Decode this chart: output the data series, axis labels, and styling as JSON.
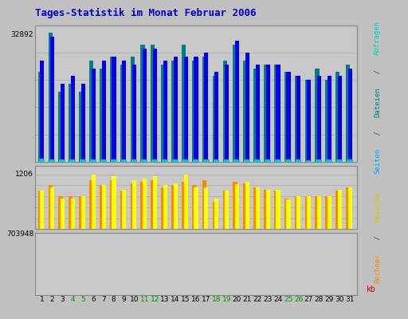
{
  "title": "Tages-Statistik im Monat Februar 2006",
  "days": [
    1,
    2,
    3,
    4,
    5,
    6,
    7,
    8,
    9,
    10,
    11,
    12,
    13,
    14,
    15,
    16,
    17,
    18,
    19,
    20,
    21,
    22,
    23,
    24,
    25,
    26,
    27,
    28,
    29,
    30,
    31
  ],
  "weekend_days": [
    4,
    5,
    11,
    12,
    18,
    19,
    25,
    26
  ],
  "bg_color": "#c0c0c0",
  "plot_bg": "#c8c8c8",
  "title_color": "#0000cc",
  "weekend_color": "#009900",
  "grid_color": "#aaaaaa",
  "teal_bars": [
    23000,
    33000,
    18000,
    20000,
    18000,
    26000,
    24000,
    27000,
    25000,
    27000,
    30000,
    30000,
    25000,
    26000,
    30000,
    26000,
    27000,
    22000,
    26000,
    30000,
    26000,
    24000,
    25000,
    25000,
    23000,
    22000,
    21000,
    24000,
    21000,
    23000,
    25000
  ],
  "blue_bars": [
    26000,
    32000,
    20000,
    22000,
    20000,
    24000,
    26000,
    27000,
    26000,
    25000,
    29000,
    29000,
    26000,
    27000,
    27000,
    27000,
    28000,
    23000,
    25000,
    31000,
    28000,
    25000,
    25000,
    25000,
    23000,
    22000,
    21000,
    22000,
    22000,
    22000,
    24000
  ],
  "cyan_bars": [
    900,
    600,
    600,
    600,
    600,
    700,
    700,
    700,
    600,
    700,
    700,
    700,
    600,
    700,
    600,
    700,
    700,
    600,
    700,
    700,
    600,
    600,
    600,
    600,
    600,
    600,
    500,
    600,
    600,
    600,
    600
  ],
  "orange_bars": [
    1050,
    1100,
    1000,
    1000,
    1000,
    1150,
    1100,
    1150,
    1050,
    1120,
    1130,
    1150,
    1080,
    1100,
    1130,
    1100,
    1150,
    950,
    1050,
    1130,
    1120,
    1080,
    1060,
    1050,
    980,
    1000,
    1000,
    1000,
    1000,
    1050,
    1080
  ],
  "yellow_bars": [
    1050,
    1080,
    980,
    980,
    1000,
    1200,
    1100,
    1180,
    1060,
    1150,
    1160,
    1180,
    1100,
    1120,
    1200,
    1080,
    1080,
    980,
    1050,
    1110,
    1130,
    1080,
    1060,
    1060,
    970,
    1000,
    1000,
    1000,
    1000,
    1060,
    1080
  ],
  "red_bars": [
    600,
    750,
    480,
    470,
    460,
    620,
    640,
    700,
    700,
    650,
    640,
    640,
    660,
    650,
    700,
    700,
    530,
    540,
    610,
    680,
    640,
    560,
    590,
    450,
    540,
    490,
    440,
    580,
    460,
    460,
    0
  ],
  "right_label_segments": [
    [
      "Rechner",
      "#ff8800"
    ],
    [
      " / ",
      "#555555"
    ],
    [
      "Besuche",
      "#cccc00"
    ],
    [
      " ",
      "#555555"
    ],
    [
      "Seiten",
      "#00aaff"
    ],
    [
      " / ",
      "#555555"
    ],
    [
      "Dateien",
      "#008080"
    ],
    [
      " / ",
      "#555555"
    ],
    [
      "Anfragen",
      "#00cccc"
    ]
  ],
  "kb_color": "#cc0000"
}
